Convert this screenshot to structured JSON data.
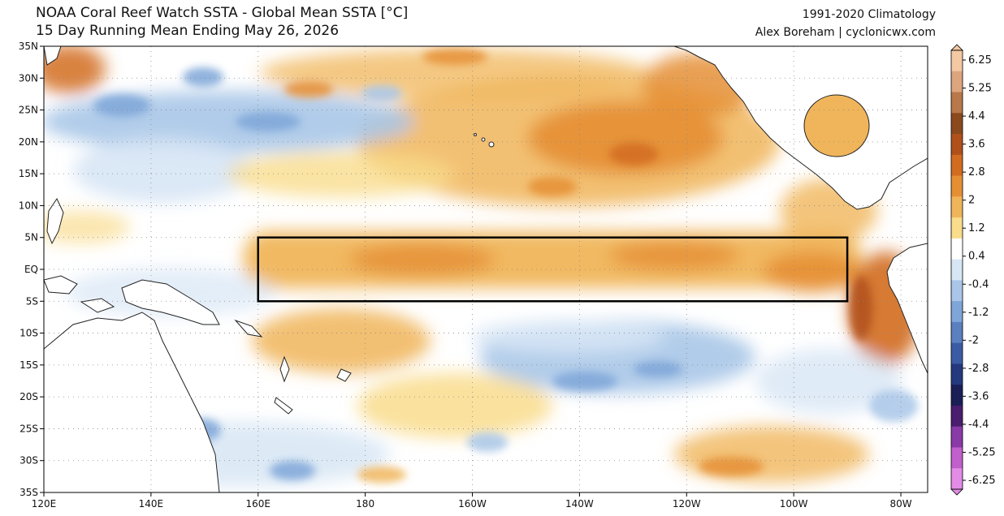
{
  "header": {
    "title_line1": "NOAA Coral Reef Watch SSTA - Global Mean SSTA [°C]",
    "title_line2": "15 Day Running Mean Ending May 26, 2026",
    "climatology": "1991-2020 Climatology",
    "credit": "Alex Boreham | cyclonicwx.com"
  },
  "map": {
    "lon_range": [
      120,
      285
    ],
    "lat_range": [
      -35,
      35
    ],
    "lat_ticks": [
      {
        "value": 35,
        "label": "35N"
      },
      {
        "value": 30,
        "label": "30N"
      },
      {
        "value": 25,
        "label": "25N"
      },
      {
        "value": 20,
        "label": "20N"
      },
      {
        "value": 15,
        "label": "15N"
      },
      {
        "value": 10,
        "label": "10N"
      },
      {
        "value": 5,
        "label": "5N"
      },
      {
        "value": 0,
        "label": "EQ"
      },
      {
        "value": -5,
        "label": "5S"
      },
      {
        "value": -10,
        "label": "10S"
      },
      {
        "value": -15,
        "label": "15S"
      },
      {
        "value": -20,
        "label": "20S"
      },
      {
        "value": -25,
        "label": "25S"
      },
      {
        "value": -30,
        "label": "30S"
      },
      {
        "value": -35,
        "label": "35S"
      }
    ],
    "lon_ticks": [
      {
        "value": 120,
        "label": "120E"
      },
      {
        "value": 140,
        "label": "140E"
      },
      {
        "value": 160,
        "label": "160E"
      },
      {
        "value": 180,
        "label": "180"
      },
      {
        "value": 200,
        "label": "160W"
      },
      {
        "value": 220,
        "label": "140W"
      },
      {
        "value": 240,
        "label": "120W"
      },
      {
        "value": 260,
        "label": "100W"
      },
      {
        "value": 280,
        "label": "80W"
      }
    ],
    "highlight_box": {
      "lon_min": 160,
      "lon_max": 270,
      "lat_min": -5,
      "lat_max": 5
    }
  },
  "colorbar": {
    "labels": [
      "6.25",
      "5.25",
      "4.4",
      "3.6",
      "2.8",
      "2",
      "1.2",
      "0.4",
      "-0.4",
      "-1.2",
      "-2",
      "-2.8",
      "-3.6",
      "-4.4",
      "-5.25",
      "-6.25"
    ],
    "colors": [
      "#f3c8a2",
      "#dca57e",
      "#b8784a",
      "#8a4a1e",
      "#b0501a",
      "#d26c20",
      "#e58f35",
      "#f0b55a",
      "#f9dc8c",
      "#ffffff",
      "#d7e6f5",
      "#a9c6e8",
      "#7ea6d8",
      "#5a80c0",
      "#3b5ca4",
      "#24397e",
      "#1a1f56",
      "#4b1d6e",
      "#8a3aa6",
      "#c160cc",
      "#e28ce6"
    ]
  }
}
